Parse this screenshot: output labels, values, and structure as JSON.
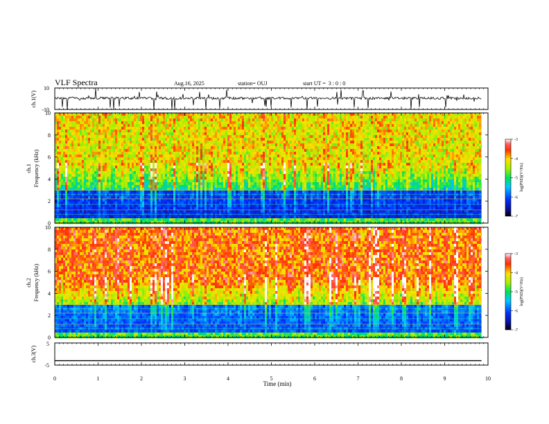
{
  "header": {
    "title": "VLF Spectra",
    "date": "Aug.16, 2025",
    "station": "station= OUJ",
    "start_ut": "start UT =  3 : 0 : 0"
  },
  "chart_data": [
    {
      "type": "line",
      "panel": "ch1-waveform",
      "ylabel": "ch.1(V)",
      "ylim": [
        -10,
        10
      ],
      "yticks": [
        "10",
        "-10"
      ],
      "x_range_min": [
        0,
        9.85
      ],
      "baseline": 0.5,
      "note_values": "noise waveform with spikes reaching -10 and +10"
    },
    {
      "type": "heatmap",
      "panel": "ch1-spectrogram",
      "ylabel": "ch.1\nFrequency (kHz)",
      "ylim": [
        0,
        10
      ],
      "yticks": [
        "0",
        "2",
        "4",
        "6",
        "8",
        "10"
      ],
      "colorbar": {
        "label": "log(PSD)(V²/Hz)",
        "ticks": [
          "-3",
          "-4",
          "-5",
          "-6",
          "-7"
        ],
        "range": [
          -7,
          -3
        ]
      }
    },
    {
      "type": "heatmap",
      "panel": "ch2-spectrogram",
      "ylabel": "ch.2\nFrequency (kHz)",
      "ylim": [
        0,
        10
      ],
      "yticks": [
        "0",
        "2",
        "4",
        "6",
        "8",
        "10"
      ],
      "colorbar": {
        "label": "log(PSD)(V²/Hz)",
        "ticks": [
          "-3",
          "-4",
          "-5",
          "-6",
          "-7"
        ],
        "range": [
          -7,
          -3
        ]
      }
    },
    {
      "type": "line",
      "panel": "ch3-waveform",
      "ylabel": "ch.3(V)",
      "ylim": [
        -5,
        5
      ],
      "yticks": [
        "5",
        "-5"
      ],
      "x": [
        0,
        9.85
      ],
      "values": [
        -3,
        -3
      ]
    }
  ],
  "xaxis": {
    "label": "Time (min)",
    "range": [
      0,
      10
    ],
    "ticks": [
      "0",
      "1",
      "2",
      "3",
      "4",
      "5",
      "6",
      "7",
      "8",
      "9",
      "10"
    ]
  }
}
